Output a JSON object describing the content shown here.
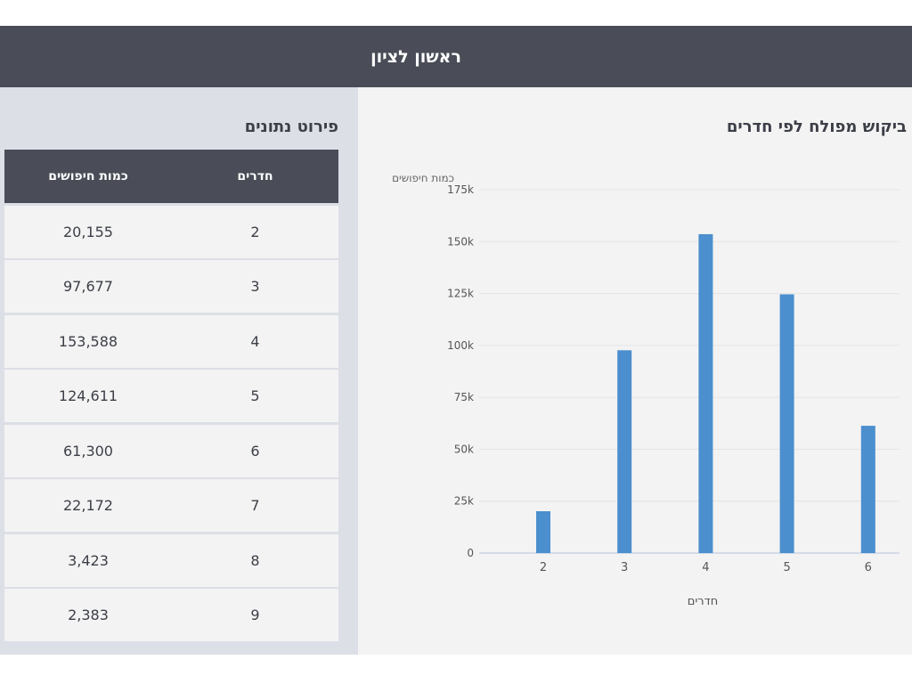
{
  "header": {
    "title": "ראשון לציון"
  },
  "table": {
    "title": "פירוט נתונים",
    "columns": {
      "rooms": "חדרים",
      "searches": "כמות חיפושים"
    },
    "rows": [
      {
        "rooms": "2",
        "searches": "20,155"
      },
      {
        "rooms": "3",
        "searches": "97,677"
      },
      {
        "rooms": "4",
        "searches": "153,588"
      },
      {
        "rooms": "5",
        "searches": "124,611"
      },
      {
        "rooms": "6",
        "searches": "61,300"
      },
      {
        "rooms": "7",
        "searches": "22,172"
      },
      {
        "rooms": "8",
        "searches": "3,423"
      },
      {
        "rooms": "9",
        "searches": "2,383"
      }
    ]
  },
  "chart_data": {
    "type": "bar",
    "title": "ביקוש מפולח לפי חדרים",
    "xlabel": "חדרים",
    "ylabel": "כמות חיפושים",
    "categories": [
      "2",
      "3",
      "4",
      "5",
      "6"
    ],
    "values": [
      20155,
      97677,
      153588,
      124611,
      61300
    ],
    "ylim": [
      0,
      175000
    ],
    "yticks": [
      0,
      25000,
      50000,
      75000,
      100000,
      125000,
      150000,
      175000
    ],
    "ytick_labels": [
      "0",
      "25k",
      "50k",
      "75k",
      "100k",
      "125k",
      "150k",
      "175k"
    ],
    "grid": true,
    "bar_color": "#4b8fce"
  }
}
